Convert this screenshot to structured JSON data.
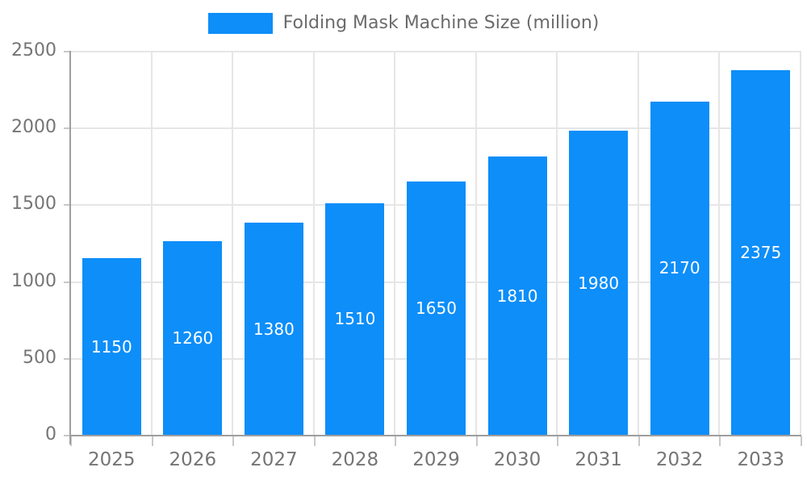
{
  "chart_data": {
    "type": "bar",
    "title": "Folding Mask Machine Size (million)",
    "categories": [
      "2025",
      "2026",
      "2027",
      "2028",
      "2029",
      "2030",
      "2031",
      "2032",
      "2033"
    ],
    "values": [
      1150,
      1260,
      1380,
      1510,
      1650,
      1810,
      1980,
      2170,
      2375
    ],
    "series": [
      {
        "name": "Folding Mask Machine Size (million)",
        "values": [
          1150,
          1260,
          1380,
          1510,
          1650,
          1810,
          1980,
          2170,
          2375
        ]
      }
    ],
    "xlabel": "",
    "ylabel": "",
    "ylim": [
      0,
      2500
    ],
    "y_ticks": [
      0,
      500,
      1000,
      1500,
      2000,
      2500
    ],
    "grid": true,
    "legend_position": "top",
    "value_label_position": "inside-center"
  },
  "legend": {
    "label": "Folding Mask Machine Size (million)"
  },
  "colors": {
    "bar": "#0d8ef9",
    "grid": "#e6e6e6",
    "axis": "#9e9e9e",
    "tick": "#c8c8c8",
    "axis_text": "#757575",
    "legend_text": "#6b6b6b",
    "value_text": "#ffffff",
    "background": "#ffffff"
  }
}
